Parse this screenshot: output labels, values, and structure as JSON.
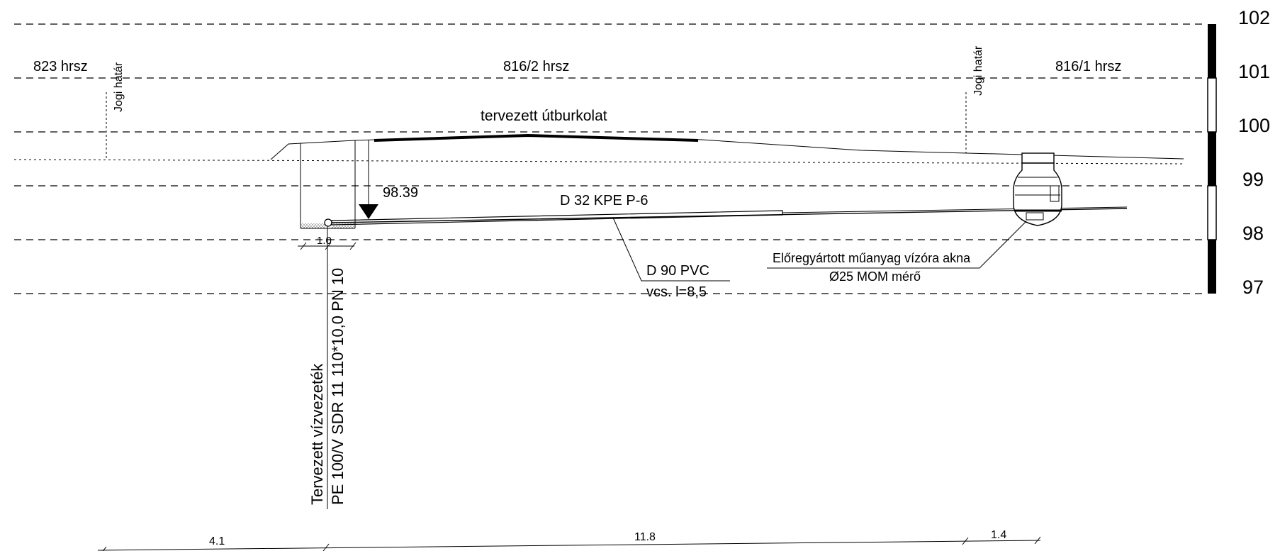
{
  "elevation_scale": {
    "labels": [
      "102",
      "101",
      "100",
      "99",
      "98",
      "97"
    ]
  },
  "parcels": {
    "left": "823 hrsz",
    "middle": "816/2 hrsz",
    "right": "816/1 hrsz"
  },
  "boundaries": {
    "left": "Jogi határ",
    "right": "Jogi határ"
  },
  "annotations": {
    "road": "tervezett útburkolat",
    "elevation": "98.39",
    "service_pipe": "D 32 KPE P-6",
    "casing_pipe": "D 90 PVC",
    "casing_length": "vcs. l=8,5",
    "meter_pit_line1": "Előregyártott műanyag vízóra akna",
    "meter_pit_line2": "Ø25 MOM mérő",
    "main_offset": "1.0",
    "main_line1": "Tervezett vízvezeték",
    "main_line2": "PE 100/V SDR 11 110*10,0 PN 10"
  },
  "dimensions": {
    "segment1": "4.1",
    "segment2": "11.8",
    "segment3": "1.4"
  }
}
